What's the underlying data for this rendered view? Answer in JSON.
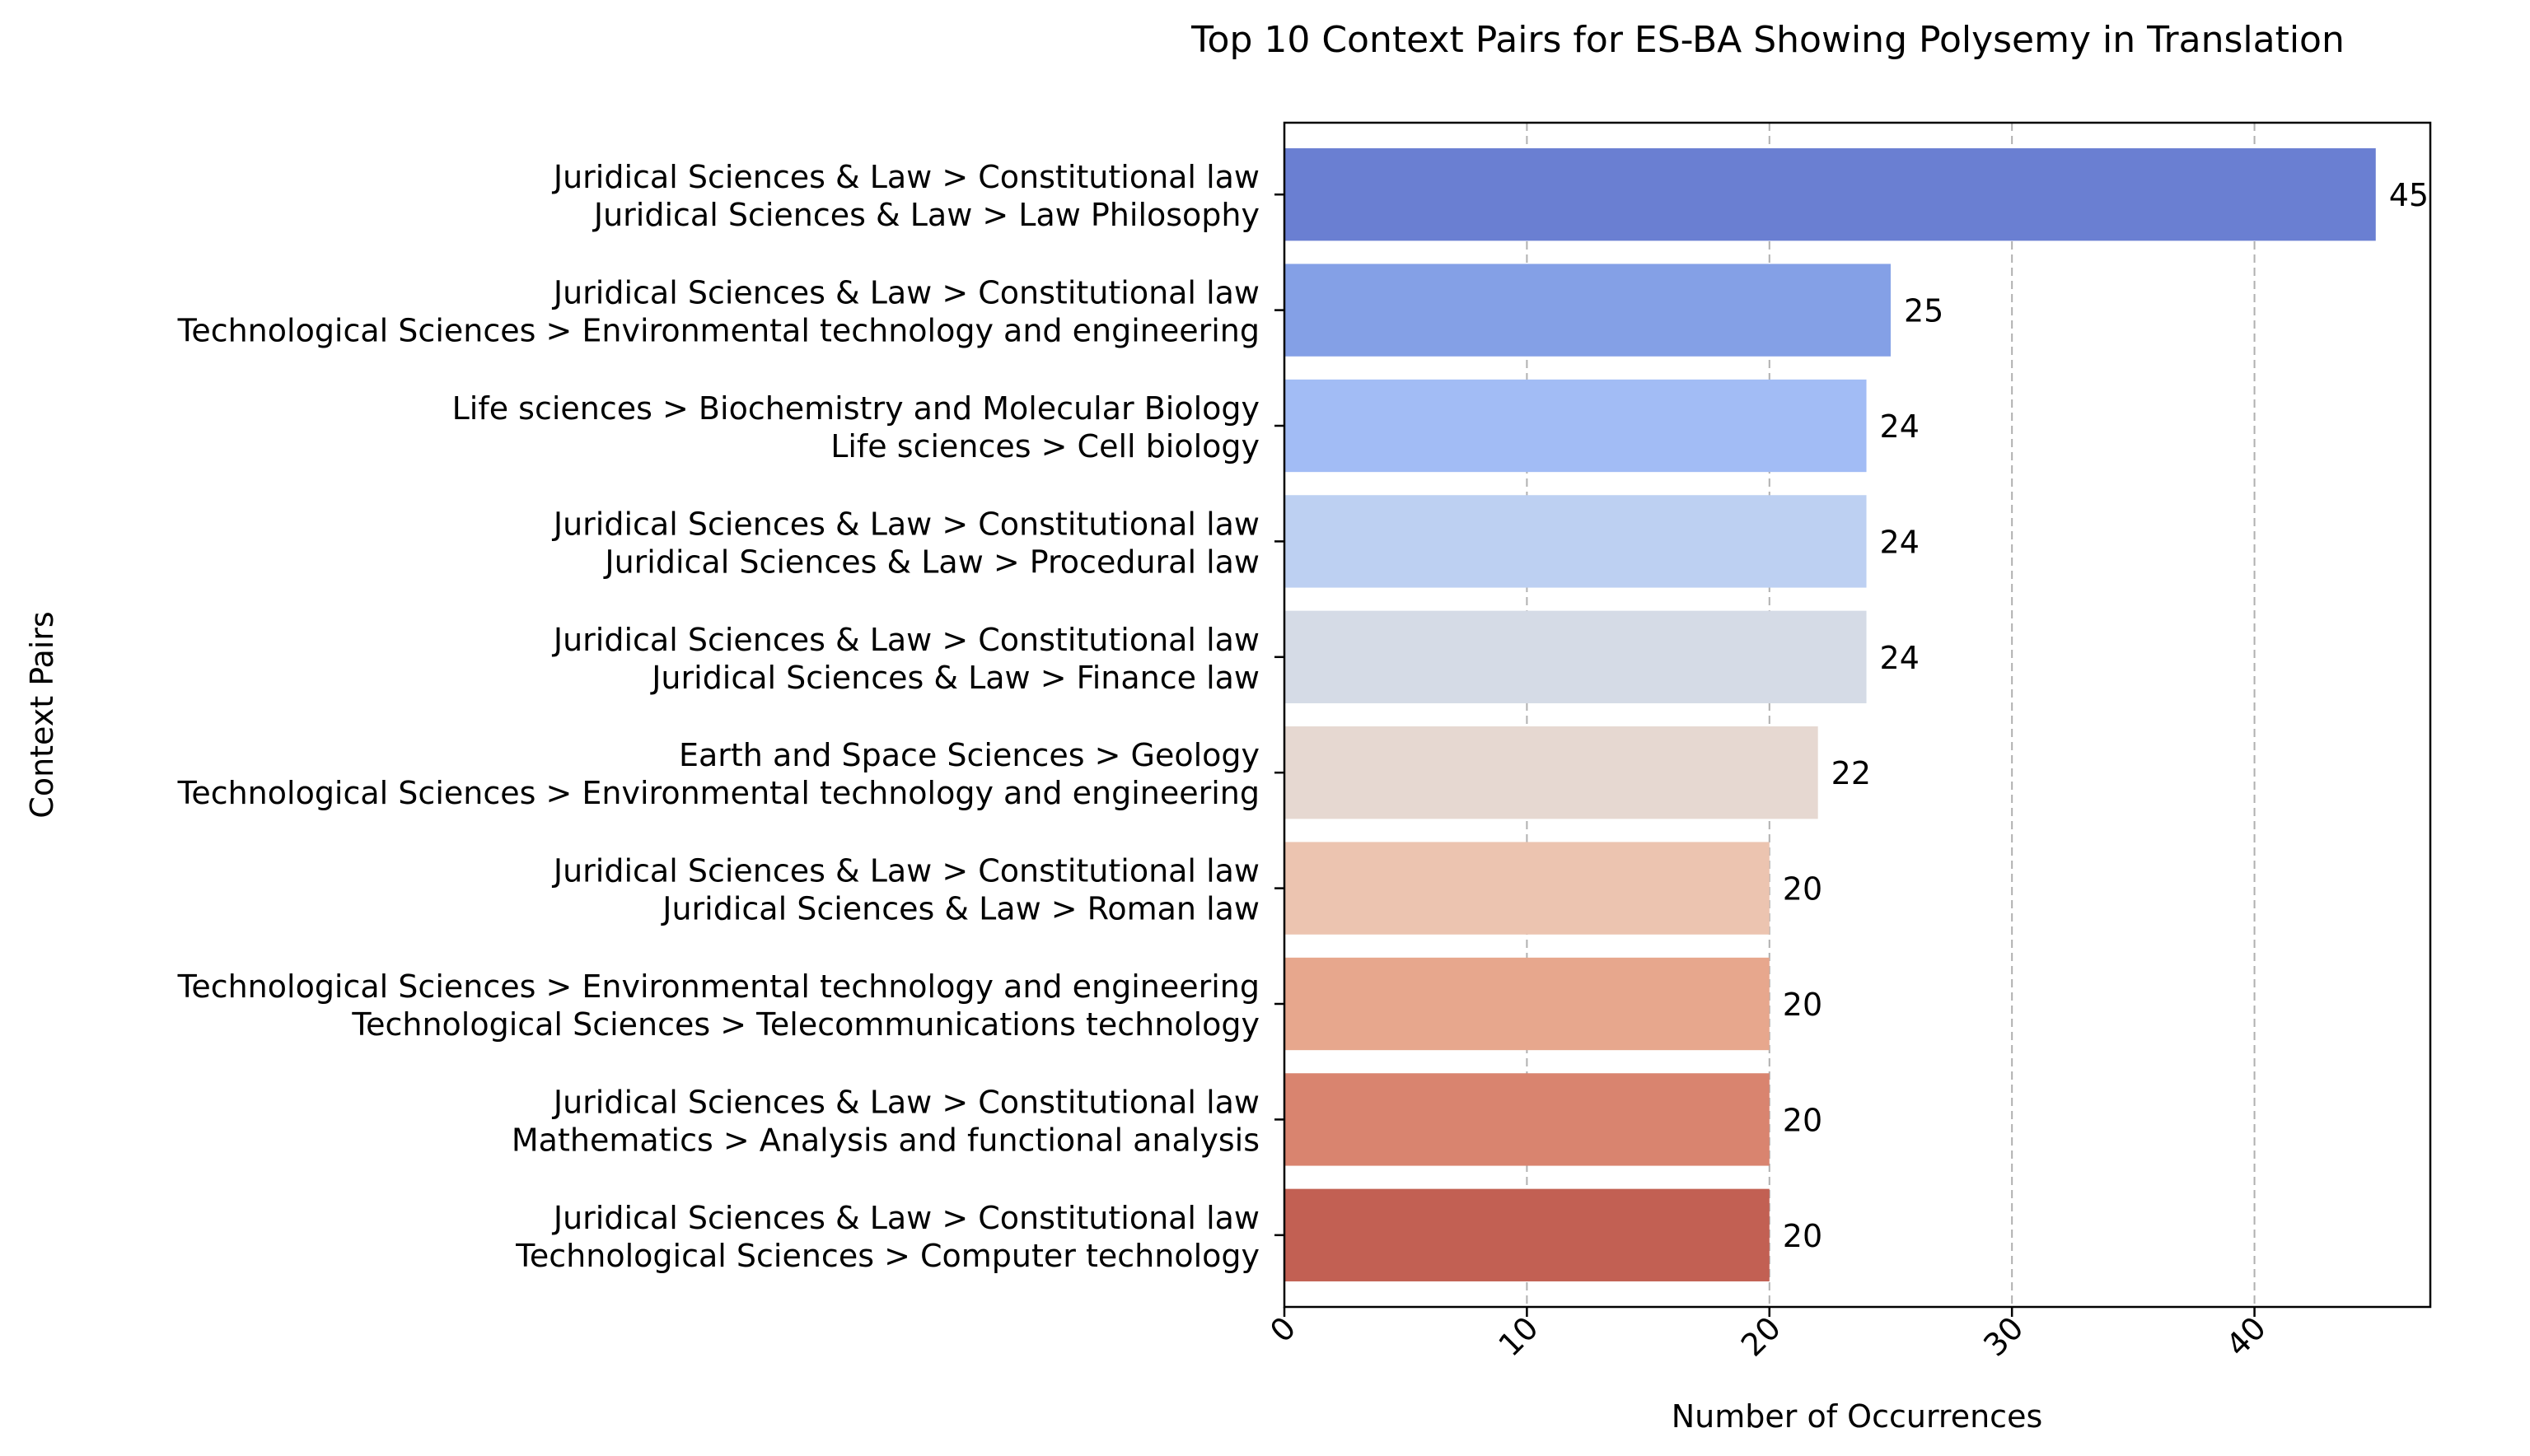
{
  "chart_data": {
    "type": "bar",
    "orientation": "horizontal",
    "title": "Top 10 Context Pairs for ES-BA Showing Polysemy in Translation",
    "xlabel": "Number of Occurrences",
    "ylabel": "Context Pairs",
    "xlim": [
      0,
      47.25
    ],
    "xticks": [
      0,
      10,
      20,
      30,
      40
    ],
    "grid": "x, dashed",
    "categories": [
      [
        "Juridical Sciences & Law > Constitutional law",
        "Juridical Sciences & Law > Law Philosophy"
      ],
      [
        "Juridical Sciences & Law > Constitutional law",
        "Technological Sciences > Environmental technology and engineering"
      ],
      [
        "Life sciences > Biochemistry and Molecular Biology",
        "Life sciences > Cell biology"
      ],
      [
        "Juridical Sciences & Law > Constitutional law",
        "Juridical Sciences & Law > Procedural law"
      ],
      [
        "Juridical Sciences & Law > Constitutional law",
        "Juridical Sciences & Law > Finance law"
      ],
      [
        "Earth and Space Sciences > Geology",
        "Technological Sciences > Environmental technology and engineering"
      ],
      [
        "Juridical Sciences & Law > Constitutional law",
        "Juridical Sciences & Law > Roman law"
      ],
      [
        "Technological Sciences > Environmental technology and engineering",
        "Technological Sciences > Telecommunications technology"
      ],
      [
        "Juridical Sciences & Law > Constitutional law",
        "Mathematics > Analysis and functional analysis"
      ],
      [
        "Juridical Sciences & Law > Constitutional law",
        "Technological Sciences > Computer technology"
      ]
    ],
    "values": [
      45,
      25,
      24,
      24,
      24,
      22,
      20,
      20,
      20,
      20
    ],
    "colors": [
      "#6a7fd2",
      "#84a0e6",
      "#a2bcf5",
      "#bdd0f2",
      "#d5dbe6",
      "#e6d8d1",
      "#ecc4b0",
      "#e7a78d",
      "#d9846f",
      "#c26053"
    ]
  }
}
